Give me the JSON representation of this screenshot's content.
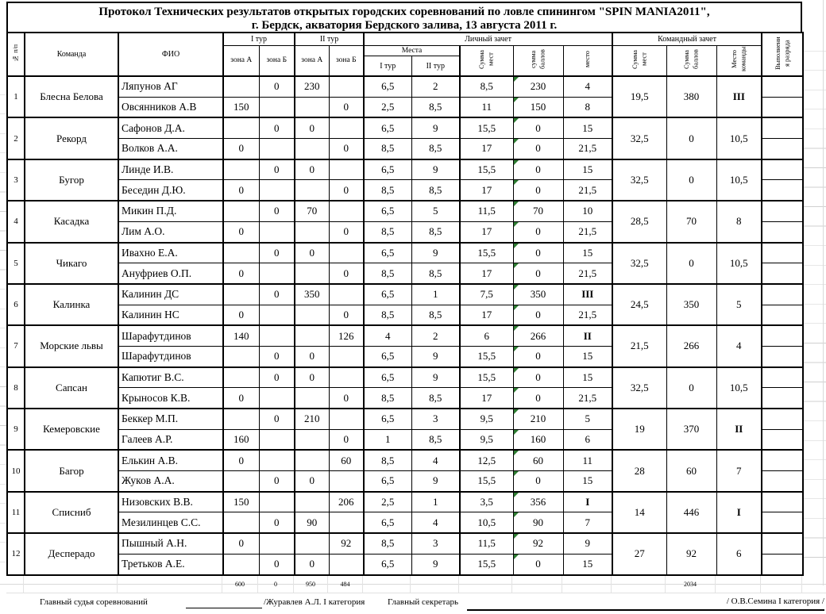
{
  "title": {
    "line1": "Протокол Технических результатов открытых городских соревнований по ловле спинингом \"SPIN MANIA2011\",",
    "line2": "г. Бердск, акватория Бердского залива, 13 августа 2011 г."
  },
  "header": {
    "num": "№ п/п",
    "team": "Команда",
    "fio": "ФИО",
    "tour1": "I тур",
    "tour2": "II тур",
    "zoneA": "зона А",
    "zoneB": "зона Б",
    "personal": "Личный зачет",
    "places": "Места",
    "places_t1": "I тур",
    "places_t2": "II тур",
    "sum_mest": "Сумма мест",
    "sum_ballov": "сумма баллов",
    "mesto": "место",
    "team_group": "Командный зачет",
    "team_sum_mest": "Сумма мест",
    "team_sum_ballov": "Сумма баллов",
    "team_mesto": "Место команды",
    "razryad": "Выполнени я разряда"
  },
  "teams": [
    {
      "n": "1",
      "name": "Блесна Белова",
      "members": [
        {
          "fio": "Ляпунов АГ",
          "z1a": "",
          "z1b": "0",
          "z2a": "230",
          "z2b": "",
          "p1": "6,5",
          "p2": "2",
          "sm": "8,5",
          "sb": "230",
          "pl": "4",
          "pl_bold": false
        },
        {
          "fio": "Овсянников А.В",
          "z1a": "150",
          "z1b": "",
          "z2a": "",
          "z2b": "0",
          "p1": "2,5",
          "p2": "8,5",
          "sm": "11",
          "sb": "150",
          "pl": "8",
          "pl_bold": false
        }
      ],
      "t_sm": "19,5",
      "t_sb": "380",
      "t_pl": "III",
      "t_pl_bold": true
    },
    {
      "n": "2",
      "name": "Рекорд",
      "members": [
        {
          "fio": "Сафонов Д.А.",
          "z1a": "",
          "z1b": "0",
          "z2a": "0",
          "z2b": "",
          "p1": "6,5",
          "p2": "9",
          "sm": "15,5",
          "sb": "0",
          "pl": "15",
          "pl_bold": false
        },
        {
          "fio": "Волков А.А.",
          "z1a": "0",
          "z1b": "",
          "z2a": "",
          "z2b": "0",
          "p1": "8,5",
          "p2": "8,5",
          "sm": "17",
          "sb": "0",
          "pl": "21,5",
          "pl_bold": false
        }
      ],
      "t_sm": "32,5",
      "t_sb": "0",
      "t_pl": "10,5",
      "t_pl_bold": false
    },
    {
      "n": "3",
      "name": "Бугор",
      "members": [
        {
          "fio": "Линде И.В.",
          "z1a": "",
          "z1b": "0",
          "z2a": "0",
          "z2b": "",
          "p1": "6,5",
          "p2": "9",
          "sm": "15,5",
          "sb": "0",
          "pl": "15",
          "pl_bold": false
        },
        {
          "fio": "Беседин Д.Ю.",
          "z1a": "0",
          "z1b": "",
          "z2a": "",
          "z2b": "0",
          "p1": "8,5",
          "p2": "8,5",
          "sm": "17",
          "sb": "0",
          "pl": "21,5",
          "pl_bold": false
        }
      ],
      "t_sm": "32,5",
      "t_sb": "0",
      "t_pl": "10,5",
      "t_pl_bold": false
    },
    {
      "n": "4",
      "name": "Касадка",
      "members": [
        {
          "fio": "Микин П.Д.",
          "z1a": "",
          "z1b": "0",
          "z2a": "70",
          "z2b": "",
          "p1": "6,5",
          "p2": "5",
          "sm": "11,5",
          "sb": "70",
          "pl": "10",
          "pl_bold": false
        },
        {
          "fio": "Лим А.О.",
          "z1a": "0",
          "z1b": "",
          "z2a": "",
          "z2b": "0",
          "p1": "8,5",
          "p2": "8,5",
          "sm": "17",
          "sb": "0",
          "pl": "21,5",
          "pl_bold": false
        }
      ],
      "t_sm": "28,5",
      "t_sb": "70",
      "t_pl": "8",
      "t_pl_bold": false
    },
    {
      "n": "5",
      "name": "Чикаго",
      "members": [
        {
          "fio": "Ивахно Е.А.",
          "z1a": "",
          "z1b": "0",
          "z2a": "0",
          "z2b": "",
          "p1": "6,5",
          "p2": "9",
          "sm": "15,5",
          "sb": "0",
          "pl": "15",
          "pl_bold": false
        },
        {
          "fio": "Ануфриев О.П.",
          "z1a": "0",
          "z1b": "",
          "z2a": "",
          "z2b": "0",
          "p1": "8,5",
          "p2": "8,5",
          "sm": "17",
          "sb": "0",
          "pl": "21,5",
          "pl_bold": false
        }
      ],
      "t_sm": "32,5",
      "t_sb": "0",
      "t_pl": "10,5",
      "t_pl_bold": false
    },
    {
      "n": "6",
      "name": "Калинка",
      "members": [
        {
          "fio": "Калинин ДС",
          "z1a": "",
          "z1b": "0",
          "z2a": "350",
          "z2b": "",
          "p1": "6,5",
          "p2": "1",
          "sm": "7,5",
          "sb": "350",
          "pl": "III",
          "pl_bold": true
        },
        {
          "fio": "Калинин НС",
          "z1a": "0",
          "z1b": "",
          "z2a": "",
          "z2b": "0",
          "p1": "8,5",
          "p2": "8,5",
          "sm": "17",
          "sb": "0",
          "pl": "21,5",
          "pl_bold": false
        }
      ],
      "t_sm": "24,5",
      "t_sb": "350",
      "t_pl": "5",
      "t_pl_bold": false
    },
    {
      "n": "7",
      "name": "Морские львы",
      "members": [
        {
          "fio": "Шарафутдинов",
          "z1a": "140",
          "z1b": "",
          "z2a": "",
          "z2b": "126",
          "p1": "4",
          "p2": "2",
          "sm": "6",
          "sb": "266",
          "pl": "II",
          "pl_bold": true
        },
        {
          "fio": "Шарафутдинов",
          "z1a": "",
          "z1b": "0",
          "z2a": "0",
          "z2b": "",
          "p1": "6,5",
          "p2": "9",
          "sm": "15,5",
          "sb": "0",
          "pl": "15",
          "pl_bold": false
        }
      ],
      "t_sm": "21,5",
      "t_sb": "266",
      "t_pl": "4",
      "t_pl_bold": false
    },
    {
      "n": "8",
      "name": "Сапсан",
      "members": [
        {
          "fio": "Капютиг В.С.",
          "z1a": "",
          "z1b": "0",
          "z2a": "0",
          "z2b": "",
          "p1": "6,5",
          "p2": "9",
          "sm": "15,5",
          "sb": "0",
          "pl": "15",
          "pl_bold": false
        },
        {
          "fio": "Крыносов К.В.",
          "z1a": "0",
          "z1b": "",
          "z2a": "",
          "z2b": "0",
          "p1": "8,5",
          "p2": "8,5",
          "sm": "17",
          "sb": "0",
          "pl": "21,5",
          "pl_bold": false
        }
      ],
      "t_sm": "32,5",
      "t_sb": "0",
      "t_pl": "10,5",
      "t_pl_bold": false
    },
    {
      "n": "9",
      "name": "Кемеровские",
      "members": [
        {
          "fio": "Беккер М.П.",
          "z1a": "",
          "z1b": "0",
          "z2a": "210",
          "z2b": "",
          "p1": "6,5",
          "p2": "3",
          "sm": "9,5",
          "sb": "210",
          "pl": "5",
          "pl_bold": false
        },
        {
          "fio": "Галеев А.Р.",
          "z1a": "160",
          "z1b": "",
          "z2a": "",
          "z2b": "0",
          "p1": "1",
          "p2": "8,5",
          "sm": "9,5",
          "sb": "160",
          "pl": "6",
          "pl_bold": false
        }
      ],
      "t_sm": "19",
      "t_sb": "370",
      "t_pl": "II",
      "t_pl_bold": true
    },
    {
      "n": "10",
      "name": "Багор",
      "members": [
        {
          "fio": "Елькин А.В.",
          "z1a": "0",
          "z1b": "",
          "z2a": "",
          "z2b": "60",
          "p1": "8,5",
          "p2": "4",
          "sm": "12,5",
          "sb": "60",
          "pl": "11",
          "pl_bold": false
        },
        {
          "fio": "Жуков А.А.",
          "z1a": "",
          "z1b": "0",
          "z2a": "0",
          "z2b": "",
          "p1": "6,5",
          "p2": "9",
          "sm": "15,5",
          "sb": "0",
          "pl": "15",
          "pl_bold": false
        }
      ],
      "t_sm": "28",
      "t_sb": "60",
      "t_pl": "7",
      "t_pl_bold": false
    },
    {
      "n": "11",
      "name": "Списниб",
      "members": [
        {
          "fio": "Низовских В.В.",
          "z1a": "150",
          "z1b": "",
          "z2a": "",
          "z2b": "206",
          "p1": "2,5",
          "p2": "1",
          "sm": "3,5",
          "sb": "356",
          "pl": "I",
          "pl_bold": true
        },
        {
          "fio": "Мезилинцев С.С.",
          "z1a": "",
          "z1b": "0",
          "z2a": "90",
          "z2b": "",
          "p1": "6,5",
          "p2": "4",
          "sm": "10,5",
          "sb": "90",
          "pl": "7",
          "pl_bold": false
        }
      ],
      "t_sm": "14",
      "t_sb": "446",
      "t_pl": "I",
      "t_pl_bold": true
    },
    {
      "n": "12",
      "name": "Десперадо",
      "members": [
        {
          "fio": "Пышный А.Н.",
          "z1a": "0",
          "z1b": "",
          "z2a": "",
          "z2b": "92",
          "p1": "8,5",
          "p2": "3",
          "sm": "11,5",
          "sb": "92",
          "pl": "9",
          "pl_bold": false
        },
        {
          "fio": "Третьков А.Е.",
          "z1a": "",
          "z1b": "0",
          "z2a": "0",
          "z2b": "",
          "p1": "6,5",
          "p2": "9",
          "sm": "15,5",
          "sb": "0",
          "pl": "15",
          "pl_bold": false
        }
      ],
      "t_sm": "27",
      "t_sb": "92",
      "t_pl": "6",
      "t_pl_bold": false
    }
  ],
  "totals": {
    "z1a": "600",
    "z1b": "0",
    "z2a": "950",
    "z2b": "484",
    "team_ballov": "2034"
  },
  "footer": {
    "judge_label": "Главный судья соревнований",
    "judge_sign": "/Журавлев А.Л. I категория",
    "secretary_label": "Главный секретарь",
    "secretary_sign": "/  О.В.Семина I категория   /"
  },
  "colors": {
    "border": "#000000",
    "warning_triangle": "#2e7d32",
    "faint_grid": "#d9d9d9"
  }
}
